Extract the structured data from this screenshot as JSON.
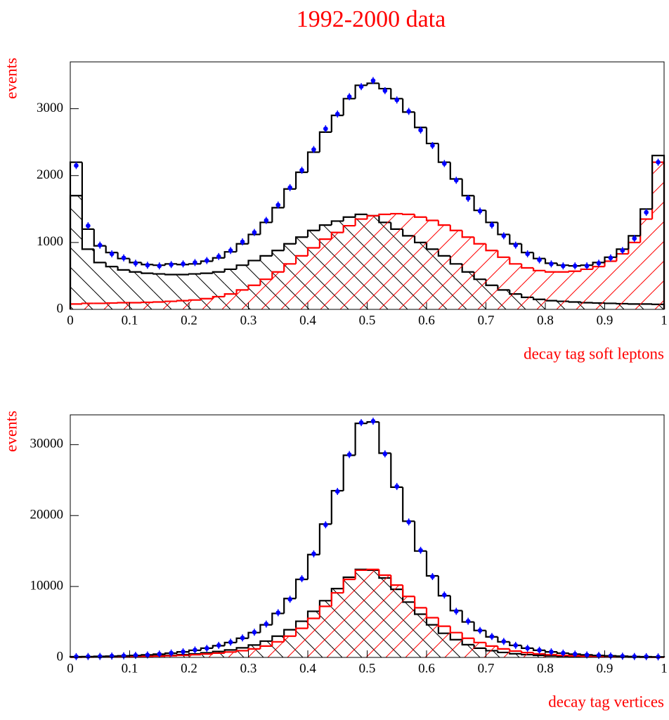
{
  "chart_data": [
    {
      "type": "histogram",
      "title": "1992-2000 data",
      "x_label": "decay tag soft leptons",
      "y_label": "events",
      "bins": [
        0,
        0.02,
        0.04,
        0.06,
        0.08,
        0.1,
        0.12,
        0.14,
        0.16,
        0.18,
        0.2,
        0.22,
        0.24,
        0.26,
        0.28,
        0.3,
        0.32,
        0.34,
        0.36,
        0.38,
        0.4,
        0.42,
        0.44,
        0.46,
        0.48,
        0.5,
        0.52,
        0.54,
        0.56,
        0.58,
        0.6,
        0.62,
        0.64,
        0.66,
        0.68,
        0.7,
        0.72,
        0.74,
        0.76,
        0.78,
        0.8,
        0.82,
        0.84,
        0.86,
        0.88,
        0.9,
        0.92,
        0.94,
        0.96,
        0.98,
        1
      ],
      "xlim": [
        0,
        1
      ],
      "ylim": [
        0,
        3700
      ],
      "xticks": [
        0,
        0.1,
        0.2,
        0.3,
        0.4,
        0.5,
        0.6,
        0.7,
        0.8,
        0.9,
        1
      ],
      "yticks": [
        0,
        1000,
        2000,
        3000
      ],
      "series": [
        {
          "color": "#000000",
          "hatch": "\\",
          "values": [
            1700,
            900,
            700,
            640,
            590,
            560,
            540,
            530,
            520,
            520,
            530,
            540,
            560,
            600,
            660,
            730,
            800,
            880,
            980,
            1080,
            1180,
            1260,
            1320,
            1380,
            1420,
            1400,
            1300,
            1200,
            1100,
            1000,
            900,
            800,
            680,
            560,
            450,
            360,
            290,
            230,
            180,
            150,
            130,
            120,
            110,
            100,
            95,
            90,
            85,
            80,
            80,
            75
          ]
        },
        {
          "color": "#ff0000",
          "hatch": "/",
          "values": [
            80,
            90,
            90,
            95,
            100,
            100,
            105,
            110,
            120,
            130,
            140,
            160,
            190,
            230,
            290,
            360,
            450,
            560,
            680,
            800,
            920,
            1050,
            1150,
            1250,
            1350,
            1400,
            1420,
            1430,
            1420,
            1380,
            1330,
            1260,
            1180,
            1080,
            980,
            880,
            780,
            680,
            620,
            580,
            560,
            560,
            570,
            600,
            640,
            720,
            830,
            1000,
            1350,
            2200
          ]
        },
        {
          "color": "#000000",
          "values": [
            2200,
            1200,
            950,
            850,
            760,
            700,
            670,
            660,
            680,
            670,
            680,
            720,
            770,
            860,
            980,
            1120,
            1300,
            1520,
            1800,
            2050,
            2350,
            2650,
            2900,
            3150,
            3350,
            3380,
            3300,
            3150,
            2950,
            2720,
            2480,
            2200,
            1950,
            1700,
            1480,
            1300,
            1120,
            980,
            850,
            760,
            690,
            660,
            650,
            660,
            700,
            780,
            900,
            1100,
            1500,
            2300
          ]
        },
        {
          "color": "#0000ff",
          "style": "points",
          "values": [
            2150,
            1250,
            960,
            830,
            770,
            690,
            660,
            650,
            670,
            680,
            700,
            730,
            790,
            880,
            1010,
            1150,
            1330,
            1560,
            1820,
            2080,
            2390,
            2700,
            2920,
            3180,
            3330,
            3420,
            3270,
            3130,
            2960,
            2680,
            2450,
            2180,
            1930,
            1660,
            1470,
            1260,
            1100,
            960,
            830,
            740,
            680,
            650,
            650,
            650,
            690,
            770,
            880,
            1060,
            1450,
            2200
          ]
        }
      ]
    },
    {
      "type": "histogram",
      "x_label": "decay tag vertices",
      "y_label": "events",
      "bins": [
        0,
        0.02,
        0.04,
        0.06,
        0.08,
        0.1,
        0.12,
        0.14,
        0.16,
        0.18,
        0.2,
        0.22,
        0.24,
        0.26,
        0.28,
        0.3,
        0.32,
        0.34,
        0.36,
        0.38,
        0.4,
        0.42,
        0.44,
        0.46,
        0.48,
        0.5,
        0.52,
        0.54,
        0.56,
        0.58,
        0.6,
        0.62,
        0.64,
        0.66,
        0.68,
        0.7,
        0.72,
        0.74,
        0.76,
        0.78,
        0.8,
        0.82,
        0.84,
        0.86,
        0.88,
        0.9,
        0.92,
        0.94,
        0.96,
        0.98,
        1
      ],
      "xlim": [
        0,
        1
      ],
      "ylim": [
        0,
        34200
      ],
      "xticks": [
        0,
        0.1,
        0.2,
        0.3,
        0.4,
        0.5,
        0.6,
        0.7,
        0.8,
        0.9,
        1
      ],
      "yticks": [
        0,
        10000,
        20000,
        30000
      ],
      "series": [
        {
          "color": "#000000",
          "hatch": "\\",
          "values": [
            50,
            60,
            75,
            90,
            110,
            140,
            180,
            230,
            300,
            390,
            500,
            650,
            830,
            1050,
            1350,
            1750,
            2300,
            3000,
            3900,
            5100,
            6500,
            8000,
            9700,
            11300,
            12400,
            12300,
            11200,
            9600,
            7800,
            6100,
            4600,
            3400,
            2500,
            1800,
            1300,
            950,
            700,
            520,
            390,
            290,
            220,
            170,
            130,
            100,
            80,
            65,
            55,
            45,
            35,
            30
          ]
        },
        {
          "color": "#ff0000",
          "hatch": "/",
          "values": [
            40,
            50,
            60,
            75,
            90,
            110,
            140,
            180,
            230,
            300,
            380,
            480,
            600,
            760,
            950,
            1200,
            1600,
            2200,
            3000,
            4100,
            5500,
            7200,
            9100,
            11000,
            12300,
            12400,
            11600,
            10200,
            8600,
            7000,
            5600,
            4400,
            3500,
            2700,
            2100,
            1600,
            1200,
            900,
            680,
            500,
            380,
            290,
            220,
            170,
            130,
            100,
            75,
            55,
            45,
            35
          ]
        },
        {
          "color": "#000000",
          "values": [
            100,
            120,
            150,
            180,
            220,
            280,
            360,
            460,
            600,
            780,
            1000,
            1300,
            1650,
            2100,
            2700,
            3500,
            4600,
            6200,
            8300,
            11000,
            14500,
            18800,
            23500,
            28500,
            33000,
            33200,
            28800,
            24000,
            19200,
            15000,
            11500,
            8700,
            6600,
            5000,
            3800,
            2900,
            2200,
            1700,
            1300,
            1000,
            780,
            600,
            460,
            360,
            280,
            220,
            170,
            130,
            100,
            80
          ]
        },
        {
          "color": "#0000ff",
          "style": "points",
          "values": [
            110,
            130,
            140,
            190,
            230,
            290,
            350,
            480,
            620,
            800,
            1050,
            1280,
            1700,
            2150,
            2750,
            3550,
            4700,
            6300,
            8200,
            11100,
            14600,
            18700,
            23400,
            28600,
            33100,
            33300,
            28700,
            24100,
            19100,
            15100,
            11400,
            8800,
            6500,
            5100,
            3800,
            2950,
            2250,
            1700,
            1300,
            1020,
            790,
            610,
            470,
            350,
            290,
            210,
            170,
            130,
            110,
            80
          ]
        }
      ]
    }
  ]
}
